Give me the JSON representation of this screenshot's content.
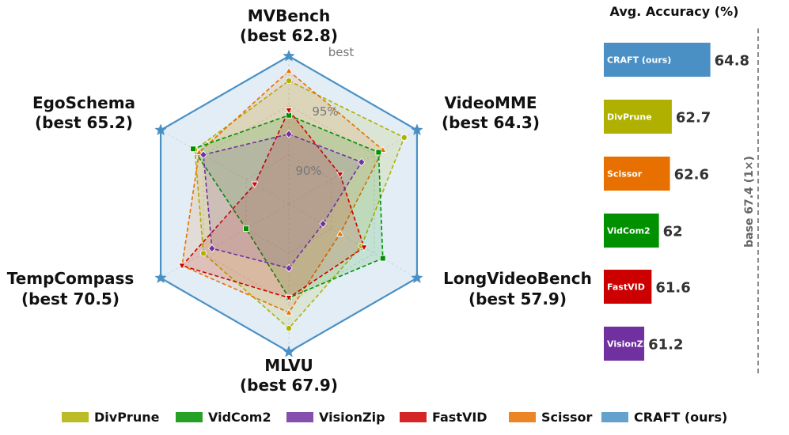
{
  "chart_data": [
    {
      "type": "radar",
      "axes": [
        {
          "name": "MVBench",
          "best_label": "(best 62.8)"
        },
        {
          "name": "VideoMME",
          "best_label": "(best 64.3)"
        },
        {
          "name": "LongVideoBench",
          "best_label": "(best 57.9)"
        },
        {
          "name": "MLVU",
          "best_label": "(best 67.9)"
        },
        {
          "name": "TempCompass",
          "best_label": "(best 70.5)"
        },
        {
          "name": "EgoSchema",
          "best_label": "(best 65.2)"
        }
      ],
      "ring_labels": [
        "90%",
        "95%",
        "best"
      ],
      "value_unit": "fraction of per-benchmark best",
      "r_range": [
        0.85,
        1.0
      ],
      "series": [
        {
          "name": "DivPrune",
          "color": "#b0b000",
          "marker": "circle",
          "values": [
            0.975,
            0.985,
            0.935,
            0.976,
            0.95,
            0.96
          ]
        },
        {
          "name": "VidCom2",
          "color": "#009000",
          "marker": "square",
          "values": [
            0.94,
            0.955,
            0.96,
            0.945,
            0.9,
            0.962
          ]
        },
        {
          "name": "VisionZip",
          "color": "#7030a0",
          "marker": "diamond",
          "values": [
            0.921,
            0.935,
            0.89,
            0.915,
            0.94,
            0.95
          ]
        },
        {
          "name": "FastVID",
          "color": "#cc0000",
          "marker": "triangle-down",
          "values": [
            0.945,
            0.91,
            0.938,
            0.945,
            0.975,
            0.89
          ]
        },
        {
          "name": "Scissor",
          "color": "#e87000",
          "marker": "triangle-up",
          "values": [
            0.985,
            0.96,
            0.91,
            0.96,
            0.975,
            0.955
          ]
        },
        {
          "name": "CRAFT (ours)",
          "color": "#4a90c4",
          "marker": "star",
          "values": [
            1.0,
            1.0,
            1.0,
            1.0,
            1.0,
            1.0
          ]
        }
      ],
      "legend": "bottom"
    },
    {
      "type": "bar",
      "orientation": "horizontal",
      "title": "Avg. Accuracy (%)",
      "categories": [
        "CRAFT (ours)",
        "DivPrune",
        "Scissor",
        "VidCom2",
        "FastVID",
        "VisionZip"
      ],
      "values": [
        64.8,
        62.7,
        62.6,
        62.0,
        61.6,
        61.2
      ],
      "colors": [
        "#4a90c4",
        "#b0b000",
        "#e87000",
        "#009000",
        "#cc0000",
        "#7030a0"
      ],
      "reference_line": {
        "value": 67.4,
        "label": "base 67.4 (1×)"
      },
      "xlim": [
        59.0,
        67.4
      ]
    }
  ]
}
